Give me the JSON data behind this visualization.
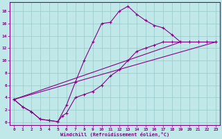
{
  "xlabel": "Windchill (Refroidissement éolien,°C)",
  "bg_color": "#c0e8e8",
  "line_color": "#880088",
  "grid_color": "#98c8c8",
  "xlim": [
    -0.5,
    23.5
  ],
  "ylim": [
    -0.5,
    19.5
  ],
  "xticks": [
    0,
    1,
    2,
    3,
    4,
    5,
    6,
    7,
    8,
    9,
    10,
    11,
    12,
    13,
    14,
    15,
    16,
    17,
    18,
    19,
    20,
    21,
    22,
    23
  ],
  "yticks": [
    0,
    2,
    4,
    6,
    8,
    10,
    12,
    14,
    16,
    18
  ],
  "curve1_x": [
    0,
    1,
    2,
    3,
    4,
    5,
    6,
    7,
    8,
    9,
    10,
    11,
    12,
    13,
    14,
    15,
    16,
    17,
    18,
    19,
    20,
    21,
    22,
    23
  ],
  "curve1_y": [
    3.7,
    2.5,
    1.7,
    0.5,
    0.3,
    0.1,
    2.8,
    6.5,
    10.0,
    13.0,
    16.0,
    16.2,
    18.0,
    18.8,
    17.5,
    16.5,
    15.7,
    15.3,
    14.2,
    13.0,
    13.0,
    13.0,
    13.0,
    13.0
  ],
  "curve2_x": [
    0,
    1,
    2,
    3,
    4,
    5,
    5.5,
    6,
    7,
    8,
    9,
    10,
    11,
    12,
    13,
    14,
    15,
    16,
    17,
    18,
    19,
    20,
    21,
    22,
    23
  ],
  "curve2_y": [
    3.7,
    2.5,
    1.7,
    0.5,
    0.3,
    0.1,
    1.0,
    1.5,
    4.0,
    4.5,
    5.0,
    6.0,
    7.5,
    8.5,
    10.0,
    11.5,
    12.0,
    12.5,
    13.0,
    13.0,
    13.0,
    13.0,
    13.0,
    13.0,
    13.0
  ],
  "curve3_x": [
    0,
    23
  ],
  "curve3_y": [
    3.7,
    13.0
  ],
  "curve4_x": [
    0,
    19
  ],
  "curve4_y": [
    3.7,
    13.0
  ]
}
